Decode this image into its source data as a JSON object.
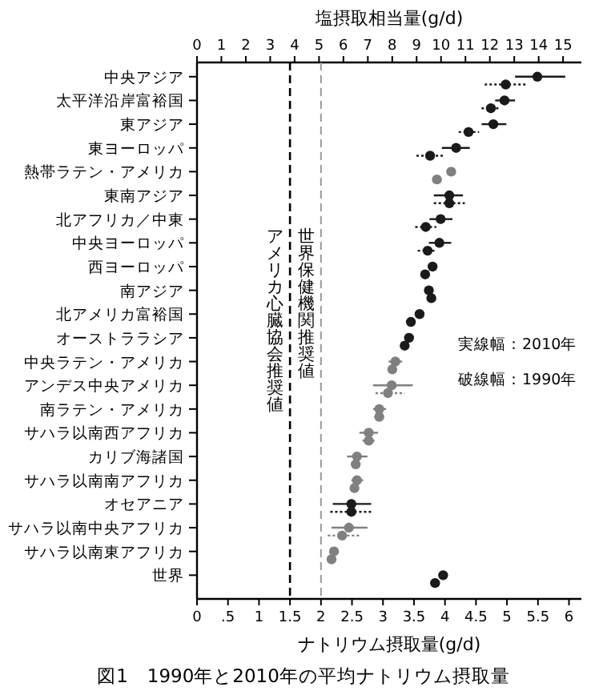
{
  "chart_data": {
    "type": "scatter",
    "orientation": "horizontal",
    "title": "図1　1990年と2010年の平均ナトリウム摂取量",
    "xlabel": "ナトリウム摂取量(g/d)",
    "x2label": "塩摂取相当量(g/d)",
    "categories": [
      "中央アジア",
      "太平洋沿岸富裕国",
      "東アジア",
      "東ヨーロッパ",
      "熱帯ラテン・アメリカ",
      "東南アジア",
      "北アフリカ／中東",
      "中央ヨーロッパ",
      "西ヨーロッパ",
      "南アジア",
      "北アメリカ富裕国",
      "オーストララシア",
      "中央ラテン・アメリカ",
      "アンデス中央アメリカ",
      "南ラテン・アメリカ",
      "サハラ以南西アフリカ",
      "カリブ海諸国",
      "サハラ以南南アフリカ",
      "オセアニア",
      "サハラ以南中央アフリカ",
      "サハラ以南東アフリカ",
      "世界"
    ],
    "series": [
      {
        "line_style": "solid",
        "values": [
          5.49,
          4.96,
          4.78,
          4.18,
          4.1,
          4.07,
          3.93,
          3.91,
          3.8,
          3.74,
          3.59,
          3.42,
          3.2,
          3.14,
          2.94,
          2.77,
          2.58,
          2.58,
          2.49,
          2.45,
          2.21,
          3.97
        ],
        "errors": [
          [
            5.13,
            5.94
          ],
          [
            4.81,
            5.13
          ],
          [
            4.59,
            4.99
          ],
          [
            3.95,
            4.4
          ],
          [
            4.05,
            4.15
          ],
          [
            3.82,
            4.29
          ],
          [
            3.75,
            4.12
          ],
          [
            3.74,
            4.1
          ],
          [
            3.73,
            3.87
          ],
          [
            3.68,
            3.8
          ],
          [
            3.54,
            3.64
          ],
          [
            3.37,
            3.47
          ],
          [
            3.09,
            3.31
          ],
          [
            2.84,
            3.48
          ],
          [
            2.84,
            3.05
          ],
          [
            2.62,
            2.92
          ],
          [
            2.42,
            2.75
          ],
          [
            2.49,
            2.68
          ],
          [
            2.19,
            2.81
          ],
          [
            2.17,
            2.75
          ],
          [
            2.15,
            2.28
          ],
          null
        ],
        "colors": [
          "#1a1a1a",
          "#1a1a1a",
          "#1a1a1a",
          "#1a1a1a",
          "#808080",
          "#1a1a1a",
          "#1a1a1a",
          "#1a1a1a",
          "#1a1a1a",
          "#1a1a1a",
          "#1a1a1a",
          "#1a1a1a",
          "#808080",
          "#808080",
          "#808080",
          "#808080",
          "#808080",
          "#808080",
          "#1a1a1a",
          "#808080",
          "#808080",
          "#1a1a1a"
        ]
      },
      {
        "line_style": "dotted",
        "values": [
          4.98,
          4.74,
          4.38,
          3.76,
          3.87,
          4.07,
          3.69,
          3.72,
          3.68,
          3.78,
          3.45,
          3.35,
          3.15,
          3.08,
          2.94,
          2.77,
          2.56,
          2.54,
          2.49,
          2.34,
          2.17,
          3.84
        ],
        "errors": [
          [
            4.64,
            5.32
          ],
          [
            4.59,
            4.89
          ],
          [
            4.22,
            4.55
          ],
          [
            3.54,
            3.98
          ],
          [
            3.82,
            3.92
          ],
          [
            3.82,
            4.32
          ],
          [
            3.52,
            3.86
          ],
          [
            3.56,
            3.86
          ],
          [
            3.63,
            3.73
          ],
          [
            3.73,
            3.83
          ],
          [
            3.41,
            3.49
          ],
          [
            3.31,
            3.39
          ],
          [
            3.08,
            3.22
          ],
          [
            2.88,
            3.35
          ],
          [
            2.86,
            3.02
          ],
          [
            2.67,
            2.87
          ],
          [
            2.5,
            2.62
          ],
          [
            2.49,
            2.59
          ],
          [
            2.15,
            2.83
          ],
          [
            2.11,
            2.62
          ],
          [
            2.12,
            2.22
          ],
          null
        ],
        "colors": [
          "#1a1a1a",
          "#1a1a1a",
          "#1a1a1a",
          "#1a1a1a",
          "#808080",
          "#1a1a1a",
          "#1a1a1a",
          "#1a1a1a",
          "#1a1a1a",
          "#1a1a1a",
          "#1a1a1a",
          "#1a1a1a",
          "#808080",
          "#808080",
          "#808080",
          "#808080",
          "#808080",
          "#808080",
          "#1a1a1a",
          "#808080",
          "#808080",
          "#1a1a1a"
        ]
      }
    ],
    "xlim": [
      0,
      6.2
    ],
    "xticks": [
      0,
      {
        "value": 0.5,
        "label": ".5"
      },
      1,
      1.5,
      2,
      2.5,
      3,
      3.5,
      4,
      4.5,
      5,
      5.5,
      6
    ],
    "x2lim": [
      0,
      15.75
    ],
    "x2ticks": [
      0,
      1,
      2,
      3,
      4,
      5,
      6,
      7,
      8,
      9,
      10,
      11,
      12,
      13,
      14,
      15
    ],
    "ref_lines": [
      {
        "axis": "x",
        "value": 1.5,
        "label": "アメリカ心臓協会推奨値",
        "color": "#000000",
        "line_style": "dashed"
      },
      {
        "axis": "x",
        "value": 2,
        "label": "世界保健機関推奨値",
        "color": "#999999",
        "line_style": "dashed"
      }
    ],
    "marker": "circle",
    "grid": false,
    "annotations": [
      "実線幅：2010年",
      "破線幅：1990年"
    ]
  }
}
